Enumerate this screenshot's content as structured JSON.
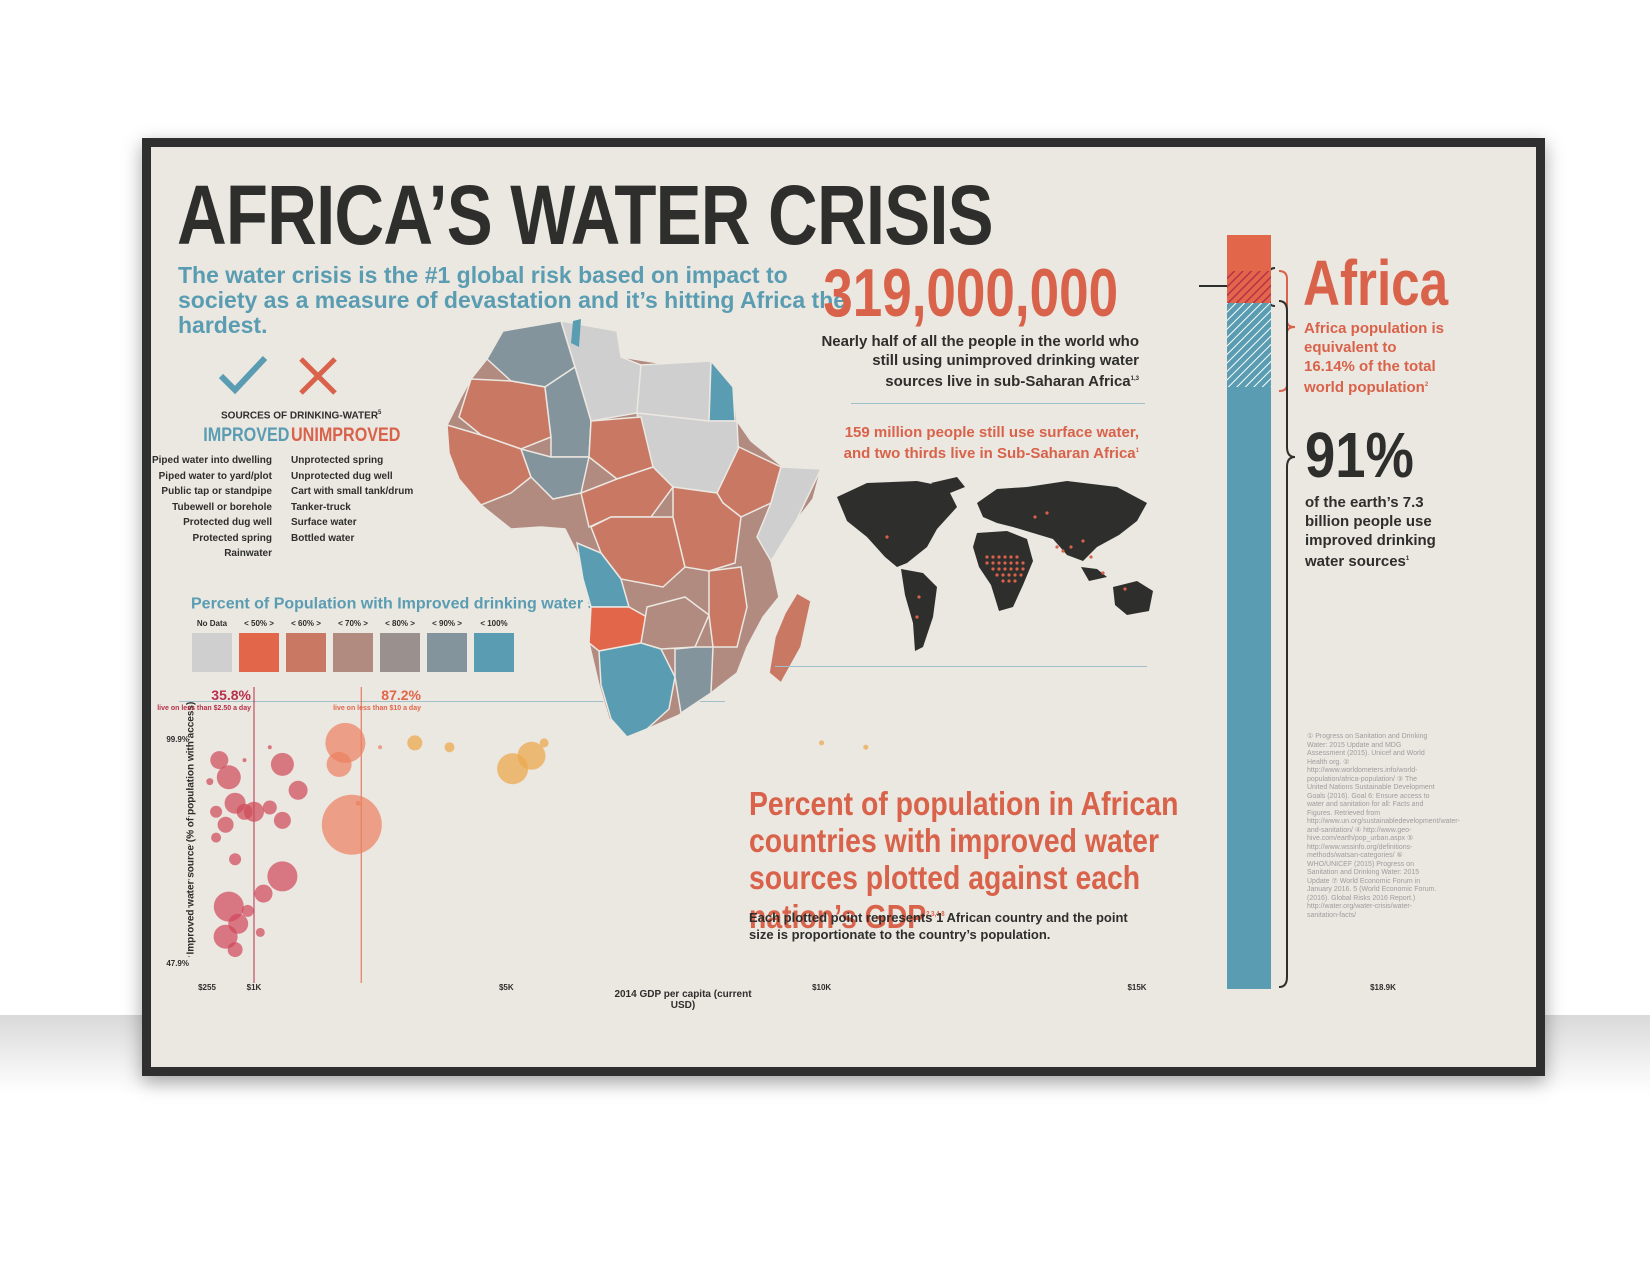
{
  "title": "AFRICA’S WATER CRISIS",
  "subtitle": "The water crisis is the #1 global risk based on impact to society as a measure of devastation and it’s hitting Africa the hardest.",
  "sources": {
    "heading": "SOURCES OF DRINKING-WATER",
    "heading_ref": "5",
    "improved_label": "IMPROVED",
    "unimproved_label": "UNIMPROVED",
    "improved": [
      "Piped water into dwelling",
      "Piped water to yard/plot",
      "Public tap or standpipe",
      "Tubewell or borehole",
      "Protected dug well",
      "Protected spring",
      "Rainwater"
    ],
    "unimproved": [
      "Unprotected spring",
      "Unprotected dug well",
      "Cart with small tank/drum",
      "Tanker-truck",
      "Surface water",
      "Bottled water"
    ]
  },
  "map_legend": {
    "title": "Percent of Population with Improved drinking water source",
    "title_ref": "6",
    "items": [
      {
        "label": "No Data",
        "color": "#cfcfcf"
      },
      {
        "label": "< 50% >",
        "color": "#e2664a"
      },
      {
        "label": "< 60% >",
        "color": "#c97864"
      },
      {
        "label": "< 70% >",
        "color": "#b18a80"
      },
      {
        "label": "< 80% >",
        "color": "#9a918e"
      },
      {
        "label": "< 90% >",
        "color": "#84949d"
      },
      {
        "label": "< 100%",
        "color": "#5a9db2"
      }
    ]
  },
  "stats": {
    "big_number": "319,000,000",
    "big_number_text": "Nearly half of all the people in the world who still using unimproved drinking water sources live in sub-Saharan Africa",
    "big_number_ref": "1,3",
    "surface_text": "159 million people still use surface water, and two thirds live in Sub-Saharan Africa",
    "surface_ref": "1",
    "africa_label": "Africa",
    "africa_text": "Africa population is equivalent to 16.14% of the total world population",
    "africa_ref": "2",
    "pct_label": "91%",
    "pct_text": "of the earth’s 7.3 billion people use improved drinking water sources",
    "pct_ref": "1"
  },
  "footnotes": "① Progress on Sanitation and Drinking Water: 2015 Update and MDG Assessment (2015). Unicef and World Health org. ② http://www.worldometers.info/world-population/africa-population/ ③ The United Nations Sustainable Development Goals (2016). Goal 6: Ensure access to water and sanitation for all: Facts and Figures. Retrieved from http://www.un.org/sustainabledevelopment/water-and-sanitation/ ④ http://www.geo-hive.com/earth/pop_urban.aspx ⑤ http://www.wssinfo.org/definitions-methods/watsan-categories/ ⑥ WHO/UNICEF (2015) Progress on Sanitation and Drinking Water: 2015 Update ⑦ World Economic Forum in January 2016. 5 (World Economic Forum. (2016). Global Risks 2016 Report.) http://water.org/water-crisis/water-sanitation-facts/",
  "scatter": {
    "title": "Percent of population in African countries with improved water sources plotted against each nation’s GDP",
    "title_ref": "2,3,4,8",
    "description": "Each plotted point represents 1 African country and the point size is proportionate to the country’s population.",
    "ylabel": "Improved water source (% of population with access)",
    "xlabel": "2014 GDP per capita (current USD)",
    "y_ticks": [
      "99.9%",
      "47.9%"
    ],
    "x_ticks": [
      "$255",
      "$1K",
      "$5K",
      "$10K",
      "$15K",
      "$18.9K"
    ],
    "marker1_value": "35.8%",
    "marker1_text": "live on less than $2.50 a day",
    "marker2_value": "87.2%",
    "marker2_text": "live on less than $10 a day"
  },
  "chart_data": {
    "type": "scatter",
    "xlabel": "2014 GDP per capita (current USD)",
    "ylabel": "Improved water source (% of population with access)",
    "xlim": [
      255,
      18900
    ],
    "ylim": [
      47.9,
      99.9
    ],
    "x_ticks": [
      "$255",
      "$1K",
      "$5K",
      "$10K",
      "$15K",
      "$18.9K"
    ],
    "reference_lines": [
      {
        "x": 1000,
        "label": "35.8%",
        "note": "live on less than $2.50 a day"
      },
      {
        "x": 2700,
        "label": "87.2%",
        "note": "live on less than $10 a day"
      }
    ],
    "points": [
      {
        "x": 2450,
        "y": 99,
        "size": 40
      },
      {
        "x": 3550,
        "y": 99,
        "size": 15
      },
      {
        "x": 5400,
        "y": 96,
        "size": 28
      },
      {
        "x": 4100,
        "y": 98,
        "size": 10
      },
      {
        "x": 5600,
        "y": 99,
        "size": 9
      },
      {
        "x": 10000,
        "y": 99,
        "size": 5
      },
      {
        "x": 10700,
        "y": 98,
        "size": 5
      },
      {
        "x": 3000,
        "y": 98,
        "size": 4
      },
      {
        "x": 2350,
        "y": 94,
        "size": 25
      },
      {
        "x": 5100,
        "y": 93,
        "size": 31
      },
      {
        "x": 2550,
        "y": 80,
        "size": 60
      },
      {
        "x": 2650,
        "y": 85,
        "size": 5
      },
      {
        "x": 450,
        "y": 95,
        "size": 18
      },
      {
        "x": 1450,
        "y": 94,
        "size": 23
      },
      {
        "x": 600,
        "y": 91,
        "size": 24
      },
      {
        "x": 1700,
        "y": 88,
        "size": 19
      },
      {
        "x": 1250,
        "y": 84,
        "size": 14
      },
      {
        "x": 1000,
        "y": 83,
        "size": 20
      },
      {
        "x": 700,
        "y": 85,
        "size": 21
      },
      {
        "x": 400,
        "y": 83,
        "size": 12
      },
      {
        "x": 850,
        "y": 83,
        "size": 16
      },
      {
        "x": 1450,
        "y": 81,
        "size": 17
      },
      {
        "x": 550,
        "y": 80,
        "size": 16
      },
      {
        "x": 400,
        "y": 77,
        "size": 10
      },
      {
        "x": 700,
        "y": 72,
        "size": 12
      },
      {
        "x": 1450,
        "y": 68,
        "size": 30
      },
      {
        "x": 1150,
        "y": 64,
        "size": 18
      },
      {
        "x": 600,
        "y": 61,
        "size": 30
      },
      {
        "x": 750,
        "y": 57,
        "size": 20
      },
      {
        "x": 550,
        "y": 54,
        "size": 24
      },
      {
        "x": 700,
        "y": 51,
        "size": 15
      },
      {
        "x": 300,
        "y": 90,
        "size": 7
      },
      {
        "x": 850,
        "y": 95,
        "size": 4
      },
      {
        "x": 1250,
        "y": 98,
        "size": 4
      },
      {
        "x": 900,
        "y": 60,
        "size": 12
      },
      {
        "x": 1100,
        "y": 55,
        "size": 9
      }
    ]
  }
}
